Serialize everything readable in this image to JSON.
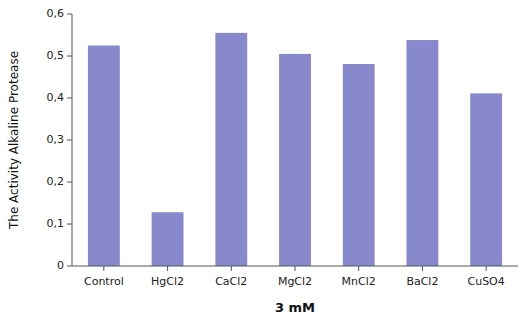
{
  "chart_data": {
    "type": "bar",
    "xlabel": "3 mM",
    "ylabel": "The Activity Alkaline Protease",
    "categories": [
      "Control",
      "HgCl2",
      "CaCl2",
      "MgCl2",
      "MnCl2",
      "BaCl2",
      "CuSO4"
    ],
    "values": [
      0.525,
      0.128,
      0.555,
      0.505,
      0.481,
      0.538,
      0.411
    ],
    "color": "#8888CC",
    "ylim": [
      0,
      0.6
    ],
    "yticks": [
      0,
      {
        "value": 0.1,
        "label": "0,1"
      },
      {
        "value": 0.2,
        "label": "0,2"
      },
      {
        "value": 0.3,
        "label": "0,3"
      },
      {
        "value": 0.4,
        "label": "0,4"
      },
      {
        "value": 0.5,
        "label": "0,5"
      },
      {
        "value": 0.6,
        "label": "0,6"
      }
    ],
    "grid": false
  }
}
